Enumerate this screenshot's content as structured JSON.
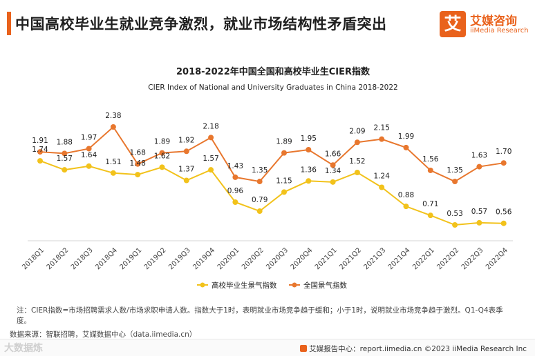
{
  "header": {
    "title": "中国高校毕业生就业竞争激烈，就业市场结构性矛盾突出"
  },
  "logo": {
    "mark": "艾",
    "cn": "艾媒咨询",
    "en": "iiMedia Research"
  },
  "chart_data": {
    "type": "line",
    "title": "2018-2022年中国全国和高校毕业生CIER指数",
    "subtitle": "CIER Index of National and University Graduates in China 2018-2022",
    "categories": [
      "2018Q1",
      "2018Q2",
      "2018Q3",
      "2018Q4",
      "2019Q1",
      "2019Q2",
      "2019Q3",
      "2019Q4",
      "2020Q1",
      "2020Q2",
      "2020Q3",
      "2020Q4",
      "2021Q1",
      "2021Q2",
      "2021Q3",
      "2021Q4",
      "2022Q1",
      "2022Q2",
      "2022Q3",
      "2022Q4"
    ],
    "series": [
      {
        "name": "全国景气指数",
        "color": "#e8772e",
        "values": [
          1.91,
          1.88,
          1.97,
          2.38,
          1.68,
          1.89,
          1.92,
          2.18,
          1.43,
          1.35,
          1.89,
          1.95,
          1.66,
          2.09,
          2.15,
          1.99,
          1.56,
          1.35,
          1.63,
          1.7
        ]
      },
      {
        "name": "高校毕业生景气指数",
        "color": "#f2c21b",
        "values": [
          1.74,
          1.57,
          1.64,
          1.51,
          1.48,
          1.62,
          1.37,
          1.57,
          0.96,
          0.79,
          1.15,
          1.36,
          1.34,
          1.52,
          1.24,
          0.88,
          0.71,
          0.53,
          0.57,
          0.56
        ]
      }
    ],
    "legend": [
      "高校毕业生景气指数",
      "全国景气指数"
    ],
    "legend_position": "bottom-center",
    "ylim": [
      0,
      2.6
    ]
  },
  "note": "注：CIER指数=市场招聘需求人数/市场求职申请人数。指数大于1时，表明就业市场竞争趋于缓和；小于1时，说明就业市场竞争趋于激烈。Q1-Q4表季度。",
  "source": "数据来源：智联招聘，艾媒数据中心（data.iimedia.cn）",
  "watermark": "大数据炼",
  "footer": {
    "text": "艾媒报告中心：report.iimedia.cn  ©2023  iiMedia Research  Inc"
  }
}
